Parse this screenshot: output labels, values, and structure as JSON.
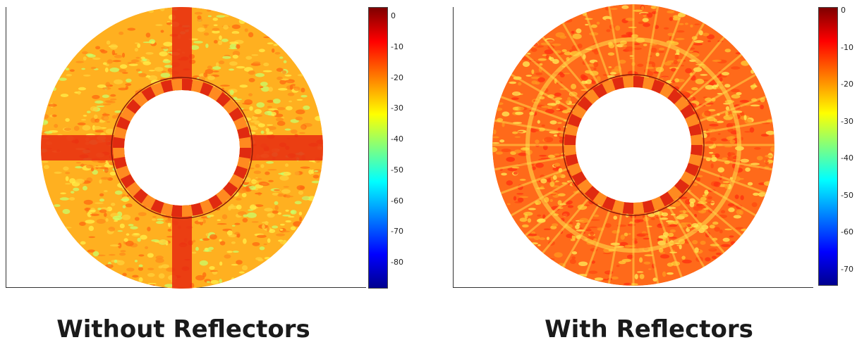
{
  "panels": [
    {
      "caption": "Without Reflectors",
      "colorbar_ticks": [
        "0",
        "-10",
        "-20",
        "-30",
        "-40",
        "-50",
        "-60",
        "-70",
        "-80"
      ],
      "colorbar_range": [
        -88,
        3
      ],
      "pattern": "cross"
    },
    {
      "caption": "With Reflectors",
      "colorbar_ticks": [
        "0",
        "-10",
        "-20",
        "-30",
        "-40",
        "-50",
        "-60",
        "-70"
      ],
      "colorbar_range": [
        -74,
        1
      ],
      "pattern": "radial"
    }
  ],
  "colormap": "jet"
}
